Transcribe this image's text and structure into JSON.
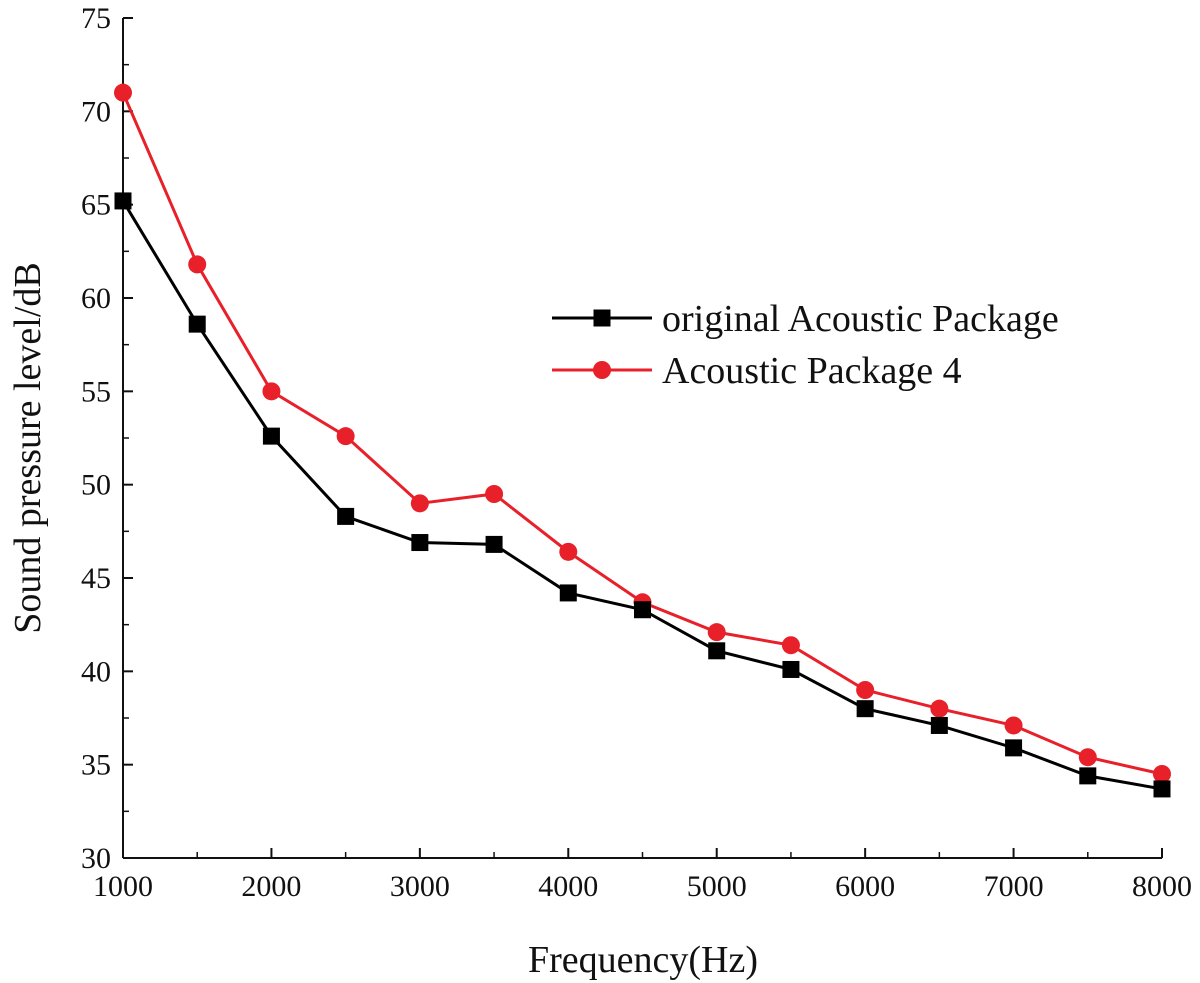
{
  "chart_data": {
    "type": "line",
    "title": "",
    "xlabel": "Frequency(Hz)",
    "ylabel": "Sound pressure level/dB",
    "xlim": [
      1000,
      8000
    ],
    "ylim": [
      30,
      75
    ],
    "x_ticks": [
      "1000",
      "2000",
      "3000",
      "4000",
      "5000",
      "6000",
      "7000",
      "8000"
    ],
    "y_ticks": [
      "30",
      "35",
      "40",
      "45",
      "50",
      "55",
      "60",
      "65",
      "70",
      "75"
    ],
    "grid": false,
    "legend_position": "center-right",
    "x": [
      1000,
      1500,
      2000,
      2500,
      3000,
      3500,
      4000,
      4500,
      5000,
      5500,
      6000,
      6500,
      7000,
      7500,
      8000
    ],
    "series": [
      {
        "name": "original Acoustic Package",
        "color": "#000000",
        "marker": "square",
        "values": [
          65.2,
          58.6,
          52.6,
          48.3,
          46.9,
          46.8,
          44.2,
          43.3,
          41.1,
          40.1,
          38.0,
          37.1,
          35.9,
          34.4,
          33.7
        ]
      },
      {
        "name": "Acoustic Package 4",
        "color": "#e8202a",
        "marker": "circle",
        "values": [
          71.0,
          61.8,
          55.0,
          52.6,
          49.0,
          49.5,
          46.4,
          43.7,
          42.1,
          41.4,
          39.0,
          38.0,
          37.1,
          35.4,
          34.5
        ]
      }
    ]
  }
}
